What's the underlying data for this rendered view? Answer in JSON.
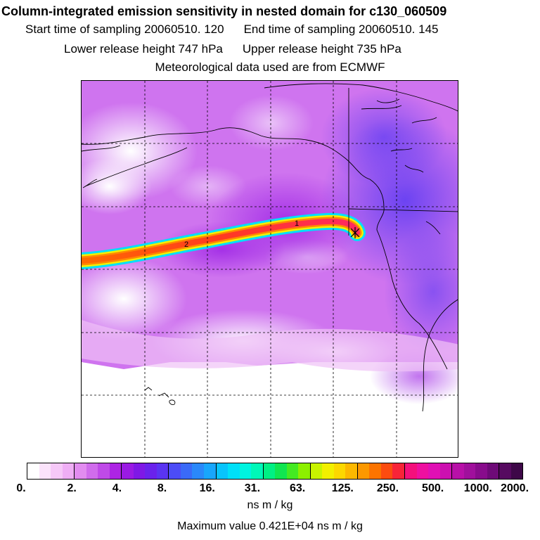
{
  "header": {
    "title": "Column-integrated emission sensitivity in nested domain for c130_060509",
    "start_label": "Start time of sampling 20060510.   120",
    "end_label": "End time of sampling 20060510.   145",
    "lower_label": "Lower release height  747 hPa",
    "upper_label": "Upper release height  735 hPa",
    "met_label": "Meteorological data used are from ECMWF"
  },
  "map": {
    "plume_labels": [
      "1",
      "2"
    ]
  },
  "colorbar": {
    "tick_labels": [
      "0.",
      "2.",
      "4.",
      "8.",
      "16.",
      "31.",
      "63.",
      "125.",
      "250.",
      "500.",
      "1000.",
      "2000."
    ],
    "colors": [
      "#ffffff",
      "#fbe3fb",
      "#f6c8f8",
      "#efaef5",
      "#e28cf0",
      "#d06cec",
      "#bf4ae8",
      "#ad24e4",
      "#9a1ae4",
      "#7f18e6",
      "#6a22ec",
      "#5a34f2",
      "#4c4cf6",
      "#3a6af8",
      "#2a88fa",
      "#18a6fc",
      "#08c4fc",
      "#00e0f8",
      "#00f4e0",
      "#00f8b8",
      "#00f084",
      "#10e650",
      "#44ea22",
      "#8cf000",
      "#c8f400",
      "#f2f000",
      "#fcd800",
      "#fcb800",
      "#fc9800",
      "#fc7400",
      "#fc4c10",
      "#f82438",
      "#f4107c",
      "#ee10a0",
      "#e010b4",
      "#cc10b0",
      "#b810a8",
      "#a0109c",
      "#880c8c",
      "#6e0a78",
      "#560a60",
      "#3e0848"
    ],
    "unit": "ns m / kg",
    "max_label": "Maximum value  0.421E+04 ns m / kg"
  }
}
